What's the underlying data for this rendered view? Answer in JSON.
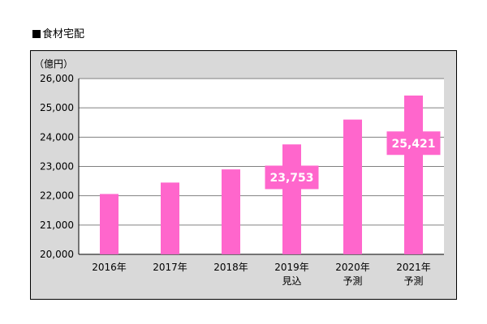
{
  "heading": "食材宅配",
  "colors": {
    "bar": "#ff66cc",
    "frame_bg": "#d9d9d9",
    "plot_bg": "#ffffff",
    "gridline": "#808080",
    "label_text": "#ffffff"
  },
  "chart_data": {
    "type": "bar",
    "title": "食材宅配",
    "ylabel": "（億円）",
    "xlabel": "",
    "ylim": [
      20000,
      26000
    ],
    "yticks": [
      "20,000",
      "21,000",
      "22,000",
      "23,000",
      "24,000",
      "25,000",
      "26,000"
    ],
    "grid": true,
    "categories": [
      [
        "2016年"
      ],
      [
        "2017年"
      ],
      [
        "2018年"
      ],
      [
        "2019年",
        "見込"
      ],
      [
        "2020年",
        "予測"
      ],
      [
        "2021年",
        "予測"
      ]
    ],
    "values": [
      22060,
      22450,
      22900,
      23753,
      24600,
      25421
    ],
    "data_labels": [
      "",
      "",
      "",
      "23,753",
      "",
      "25,421"
    ]
  }
}
